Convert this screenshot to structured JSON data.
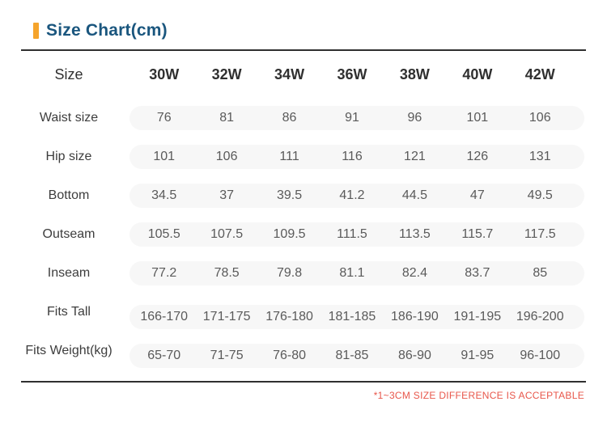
{
  "header": {
    "title": "Size Chart(cm)"
  },
  "chart_data": {
    "type": "table",
    "title": "Size Chart(cm)",
    "corner_label": "Size",
    "columns": [
      "30W",
      "32W",
      "34W",
      "36W",
      "38W",
      "40W",
      "42W"
    ],
    "rows": [
      {
        "label": "Waist size",
        "values": [
          "76",
          "81",
          "86",
          "91",
          "96",
          "101",
          "106"
        ]
      },
      {
        "label": "Hip size",
        "values": [
          "101",
          "106",
          "111",
          "116",
          "121",
          "126",
          "131"
        ]
      },
      {
        "label": "Bottom",
        "values": [
          "34.5",
          "37",
          "39.5",
          "41.2",
          "44.5",
          "47",
          "49.5"
        ]
      },
      {
        "label": "Outseam",
        "values": [
          "105.5",
          "107.5",
          "109.5",
          "111.5",
          "113.5",
          "115.7",
          "117.5"
        ]
      },
      {
        "label": "Inseam",
        "values": [
          "77.2",
          "78.5",
          "79.8",
          "81.1",
          "82.4",
          "83.7",
          "85"
        ]
      },
      {
        "label": "Fits Tall",
        "values": [
          "166-170",
          "171-175",
          "176-180",
          "181-185",
          "186-190",
          "191-195",
          "196-200"
        ]
      },
      {
        "label": "Fits Weight(kg)",
        "values": [
          "65-70",
          "71-75",
          "76-80",
          "81-85",
          "86-90",
          "91-95",
          "96-100"
        ]
      }
    ]
  },
  "footer": {
    "note": "*1~3CM SIZE DIFFERENCE IS ACCEPTABLE"
  },
  "colors": {
    "accent_orange": "#F5A42C",
    "title_blue": "#1A567E",
    "note_red": "#E8564A",
    "rule_dark": "#2F2F2F",
    "pill_background": "#F7F7F7"
  }
}
